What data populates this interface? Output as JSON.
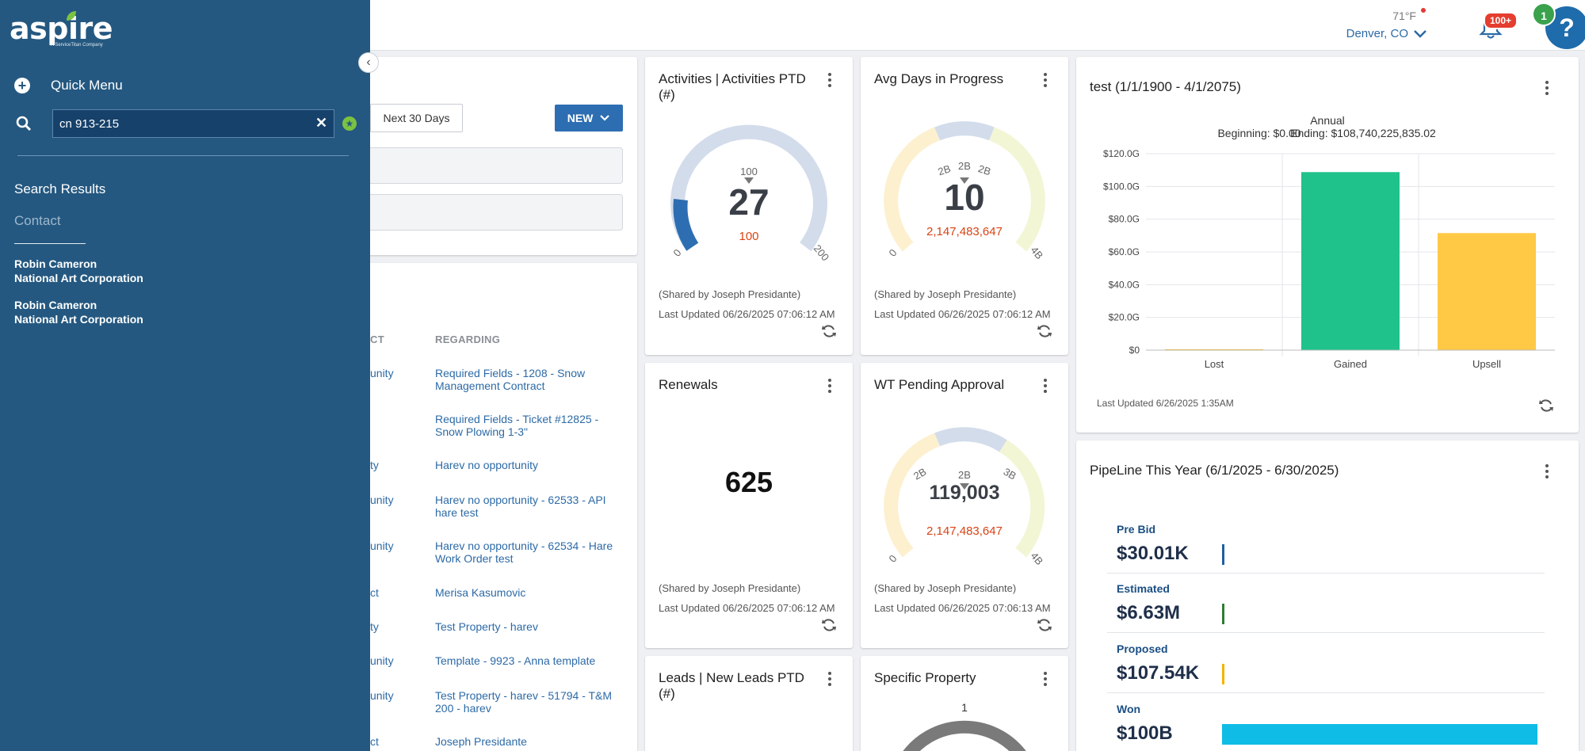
{
  "app": {
    "logo_text": "aspire",
    "logo_tagline": "A ServiceTitan Company"
  },
  "header": {
    "temperature": "71°F",
    "location": "Denver, CO",
    "notifications_badge": "100+",
    "help_badge": "1",
    "help_label": "?"
  },
  "sidebar": {
    "quick_menu_label": "Quick Menu",
    "search_value": "cn 913-215",
    "search_results_title": "Search Results",
    "category": "Contact",
    "results": [
      {
        "name": "Robin Cameron",
        "company": "National Art Corporation"
      },
      {
        "name": "Robin Cameron",
        "company": "National Art Corporation"
      }
    ]
  },
  "activity_panel": {
    "next_30_label": "Next 30 Days",
    "new_label": "NEW",
    "col_contact_partial": "CT",
    "col_regarding": "REGARDING",
    "rows": [
      {
        "type": "unity",
        "regarding": "Required Fields - 1208 - Snow Management Contract"
      },
      {
        "type": "",
        "regarding": "Required Fields - Ticket #12825 - Snow Plowing 1-3\""
      },
      {
        "type": "ty",
        "regarding": "Harev no opportunity"
      },
      {
        "type": "unity",
        "regarding": "Harev no opportunity - 62533 - API hare test"
      },
      {
        "type": "unity",
        "regarding": "Harev no opportunity - 62534 - Hare Work Order test"
      },
      {
        "type": "ct",
        "regarding": "Merisa Kasumovic"
      },
      {
        "type": "ty",
        "regarding": "Test Property - harev"
      },
      {
        "type": "unity",
        "regarding": "Template - 9923 - Anna template"
      },
      {
        "type": "unity",
        "regarding": "Test Property - harev - 51794 - T&M 200 - harev"
      },
      {
        "type": "ct",
        "regarding": "Joseph Presidante"
      }
    ]
  },
  "widgets": {
    "activities": {
      "title": "Activities | Activities PTD (#)",
      "value": "27",
      "target": "100",
      "tick_top": "100",
      "tick_min": "0",
      "tick_max": "200",
      "shared": "(Shared by Joseph Presidante)",
      "updated": "Last Updated 06/26/2025 07:06:12 AM"
    },
    "avg_days": {
      "title": "Avg Days in Progress",
      "value": "10",
      "target": "2,147,483,647",
      "tick_top": "2B",
      "tick_left": "2B",
      "tick_right": "2B",
      "tick_min": "0",
      "tick_max": "4B",
      "shared": "(Shared by Joseph Presidante)",
      "updated": "Last Updated 06/26/2025 07:06:12 AM"
    },
    "renewals": {
      "title": "Renewals",
      "value": "625",
      "shared": "(Shared by Joseph Presidante)",
      "updated": "Last Updated 06/26/2025 07:06:12 AM"
    },
    "wt_pending": {
      "title": "WT Pending Approval",
      "value": "119,003",
      "target": "2,147,483,647",
      "tick_top": "2B",
      "tick_left": "2B",
      "tick_right": "3B",
      "tick_min": "0",
      "tick_max": "4B",
      "shared": "(Shared by Joseph Presidante)",
      "updated": "Last Updated 06/26/2025 07:06:13 AM"
    },
    "leads": {
      "title": "Leads | New Leads PTD (#)"
    },
    "specific_property": {
      "title": "Specific Property",
      "tick_top": "1"
    },
    "test_chart": {
      "title": "test (1/1/1900 - 4/1/2075)",
      "updated": "Last Updated 6/26/2025 1:35AM"
    },
    "pipeline": {
      "title": "PipeLine This Year (6/1/2025 - 6/30/2025)",
      "rows": [
        {
          "label": "Pre Bid",
          "value": "$30.01K",
          "color": "#1d5fa0",
          "fraction": 0.0
        },
        {
          "label": "Estimated",
          "value": "$6.63M",
          "color": "#2e7d32",
          "fraction": 0.0
        },
        {
          "label": "Proposed",
          "value": "$107.54K",
          "color": "#f4b400",
          "fraction": 0.0
        },
        {
          "label": "Won",
          "value": "$100B",
          "color": "#0fbce6",
          "fraction": 1.0
        }
      ]
    }
  },
  "chart_data": {
    "type": "bar",
    "title": "Annual",
    "subtitle_left": "Beginning: $0.00",
    "subtitle_right": "Ending: $108,740,225,835.02",
    "categories": [
      "Lost",
      "Gained",
      "Upsell"
    ],
    "values": [
      0,
      108.74,
      71.5
    ],
    "colors": [
      "#f4b400",
      "#1fc28b",
      "#ffc845"
    ],
    "yticks": [
      "$0",
      "$20.0G",
      "$40.0G",
      "$60.0G",
      "$80.0G",
      "$100.0G",
      "$120.0G"
    ],
    "ylim": [
      0,
      120
    ],
    "grid": true
  }
}
